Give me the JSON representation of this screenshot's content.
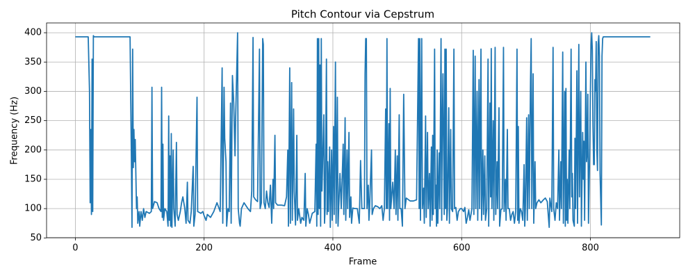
{
  "chart_data": {
    "type": "line",
    "title": "Pitch Contour via Cepstrum",
    "x_label": "Frame",
    "y_label": "Frequency (Hz)",
    "color": "#1f77b4",
    "grid": true,
    "xlim": [
      -44.7,
      938.7
    ],
    "ylim": [
      50.4,
      416.7
    ],
    "xticks": [
      0,
      200,
      400,
      600,
      800
    ],
    "yticks": [
      50,
      100,
      150,
      200,
      250,
      300,
      350,
      400
    ],
    "x": [
      0,
      20,
      22,
      23,
      24,
      25,
      26,
      27,
      28,
      29,
      85,
      87,
      88,
      89,
      90,
      91,
      92,
      93,
      95,
      96,
      97,
      99,
      100,
      102,
      104,
      106,
      108,
      110,
      115,
      118,
      119,
      120,
      123,
      127,
      130,
      133,
      134,
      135,
      136,
      137,
      139,
      142,
      144,
      145,
      146,
      147,
      148,
      149,
      150,
      152,
      153,
      155,
      157,
      158,
      160,
      163,
      165,
      167,
      170,
      172,
      174,
      175,
      178,
      180,
      183,
      184,
      186,
      189,
      190,
      195,
      198,
      200,
      203,
      205,
      210,
      215,
      220,
      225,
      228,
      229,
      231,
      232,
      234,
      235,
      237,
      239,
      241,
      242,
      244,
      246,
      248,
      249,
      252,
      253,
      255,
      256,
      258,
      262,
      268,
      272,
      274,
      276,
      277,
      280,
      283,
      286,
      287,
      289,
      291,
      292,
      293,
      295,
      297,
      299,
      301,
      303,
      305,
      307,
      308,
      310,
      311,
      314,
      320,
      325,
      328,
      330,
      331,
      333,
      334,
      336,
      337,
      339,
      340,
      342,
      344,
      345,
      347,
      350,
      352,
      355,
      357,
      358,
      360,
      362,
      364,
      368,
      372,
      374,
      375,
      376,
      377,
      378,
      379,
      380,
      381,
      382,
      383,
      386,
      387,
      388,
      390,
      391,
      392,
      393,
      395,
      396,
      398,
      399,
      401,
      402,
      404,
      405,
      407,
      408,
      409,
      411,
      413,
      416,
      417,
      419,
      420,
      422,
      423,
      425,
      426,
      428,
      429,
      431,
      434,
      438,
      441,
      443,
      445,
      449,
      450,
      451,
      452,
      453,
      455,
      456,
      457,
      460,
      461,
      463,
      466,
      470,
      473,
      476,
      478,
      480,
      482,
      483,
      484,
      485,
      487,
      488,
      489,
      490,
      493,
      495,
      497,
      498,
      500,
      501,
      503,
      504,
      506,
      508,
      510,
      512,
      514,
      520,
      525,
      530,
      533,
      534,
      535,
      536,
      538,
      539,
      541,
      542,
      544,
      545,
      547,
      548,
      550,
      551,
      553,
      554,
      555,
      556,
      558,
      559,
      560,
      561,
      562,
      563,
      565,
      566,
      568,
      569,
      570,
      571,
      572,
      573,
      574,
      575,
      576,
      577,
      578,
      580,
      581,
      583,
      584,
      586,
      588,
      589,
      591,
      593,
      595,
      598,
      600,
      603,
      605,
      607,
      609,
      611,
      613,
      616,
      618,
      619,
      621,
      622,
      624,
      625,
      627,
      628,
      630,
      631,
      633,
      634,
      636,
      637,
      639,
      641,
      642,
      644,
      645,
      646,
      647,
      649,
      650,
      652,
      653,
      655,
      656,
      658,
      659,
      661,
      663,
      665,
      666,
      668,
      669,
      671,
      672,
      674,
      676,
      678,
      680,
      682,
      684,
      686,
      687,
      688,
      689,
      691,
      693,
      695,
      697,
      698,
      699,
      701,
      702,
      704,
      705,
      707,
      708,
      709,
      711,
      712,
      714,
      715,
      717,
      720,
      723,
      727,
      730,
      733,
      736,
      737,
      738,
      740,
      742,
      743,
      745,
      747,
      749,
      751,
      752,
      754,
      755,
      757,
      758,
      760,
      761,
      762,
      763,
      764,
      765,
      767,
      768,
      770,
      771,
      772,
      773,
      775,
      776,
      777,
      779,
      780,
      782,
      783,
      785,
      786,
      788,
      789,
      790,
      791,
      793,
      794,
      795,
      796,
      797,
      799,
      800,
      801,
      802,
      803,
      804,
      805,
      806,
      807,
      808,
      809,
      810,
      811,
      812,
      813,
      814,
      815,
      817,
      818,
      819,
      820,
      893
    ],
    "values": [
      393,
      393,
      300,
      110,
      235,
      90,
      355,
      95,
      395,
      393,
      393,
      190,
      68,
      372,
      170,
      235,
      180,
      218,
      100,
      120,
      75,
      95,
      70,
      95,
      80,
      100,
      85,
      95,
      92,
      95,
      307,
      100,
      112,
      110,
      100,
      95,
      307,
      85,
      210,
      80,
      100,
      95,
      70,
      258,
      80,
      190,
      70,
      228,
      68,
      200,
      100,
      70,
      213,
      90,
      80,
      95,
      110,
      120,
      100,
      75,
      145,
      80,
      75,
      95,
      172,
      70,
      90,
      290,
      95,
      92,
      95,
      88,
      80,
      90,
      85,
      95,
      110,
      95,
      340,
      75,
      307,
      220,
      180,
      70,
      100,
      95,
      280,
      75,
      327,
      280,
      190,
      255,
      400,
      100,
      75,
      70,
      100,
      110,
      100,
      95,
      130,
      392,
      120,
      115,
      112,
      372,
      100,
      110,
      390,
      380,
      110,
      100,
      130,
      110,
      102,
      140,
      75,
      150,
      100,
      225,
      110,
      106,
      106,
      105,
      120,
      200,
      70,
      340,
      75,
      315,
      80,
      270,
      130,
      72,
      225,
      80,
      100,
      75,
      85,
      80,
      160,
      70,
      100,
      90,
      75,
      92,
      95,
      210,
      70,
      390,
      90,
      390,
      100,
      345,
      70,
      390,
      130,
      260,
      75,
      100,
      355,
      90,
      180,
      95,
      205,
      68,
      200,
      80,
      240,
      90,
      350,
      75,
      290,
      70,
      100,
      160,
      100,
      210,
      90,
      255,
      80,
      200,
      100,
      230,
      85,
      120,
      75,
      101,
      100,
      100,
      75,
      182,
      100,
      100,
      330,
      390,
      390,
      100,
      140,
      80,
      100,
      200,
      90,
      100,
      105,
      103,
      100,
      105,
      80,
      100,
      270,
      100,
      390,
      100,
      245,
      80,
      305,
      100,
      145,
      100,
      200,
      90,
      190,
      80,
      260,
      100,
      100,
      70,
      295,
      100,
      118,
      113,
      113,
      115,
      390,
      100,
      390,
      80,
      390,
      100,
      135,
      75,
      258,
      85,
      230,
      100,
      160,
      70,
      205,
      80,
      225,
      90,
      372,
      100,
      140,
      70,
      200,
      75,
      195,
      100,
      390,
      80,
      240,
      330,
      210,
      90,
      372,
      100,
      372,
      80,
      100,
      272,
      75,
      235,
      100,
      95,
      372,
      100,
      102,
      80,
      95,
      100,
      100,
      95,
      102,
      75,
      85,
      98,
      80,
      100,
      370,
      90,
      360,
      100,
      300,
      80,
      320,
      100,
      372,
      80,
      200,
      90,
      190,
      80,
      100,
      355,
      70,
      280,
      120,
      373,
      100,
      250,
      80,
      375,
      90,
      180,
      100,
      272,
      70,
      98,
      100,
      375,
      95,
      150,
      80,
      235,
      100,
      100,
      80,
      90,
      95,
      75,
      95,
      372,
      80,
      240,
      75,
      100,
      95,
      80,
      175,
      70,
      100,
      255,
      80,
      260,
      100,
      320,
      390,
      100,
      330,
      75,
      180,
      100,
      110,
      115,
      110,
      115,
      118,
      112,
      68,
      118,
      110,
      95,
      375,
      100,
      80,
      110,
      100,
      200,
      80,
      180,
      100,
      367,
      75,
      300,
      70,
      305,
      80,
      150,
      75,
      200,
      100,
      372,
      120,
      160,
      80,
      70,
      220,
      100,
      335,
      75,
      380,
      120,
      300,
      70,
      230,
      150,
      215,
      80,
      350,
      180,
      195,
      295,
      75,
      205,
      300,
      380,
      400,
      370,
      240,
      175,
      175,
      320,
      300,
      385,
      200,
      165,
      380,
      395,
      360,
      160,
      72,
      360,
      390,
      393,
      393
    ]
  }
}
